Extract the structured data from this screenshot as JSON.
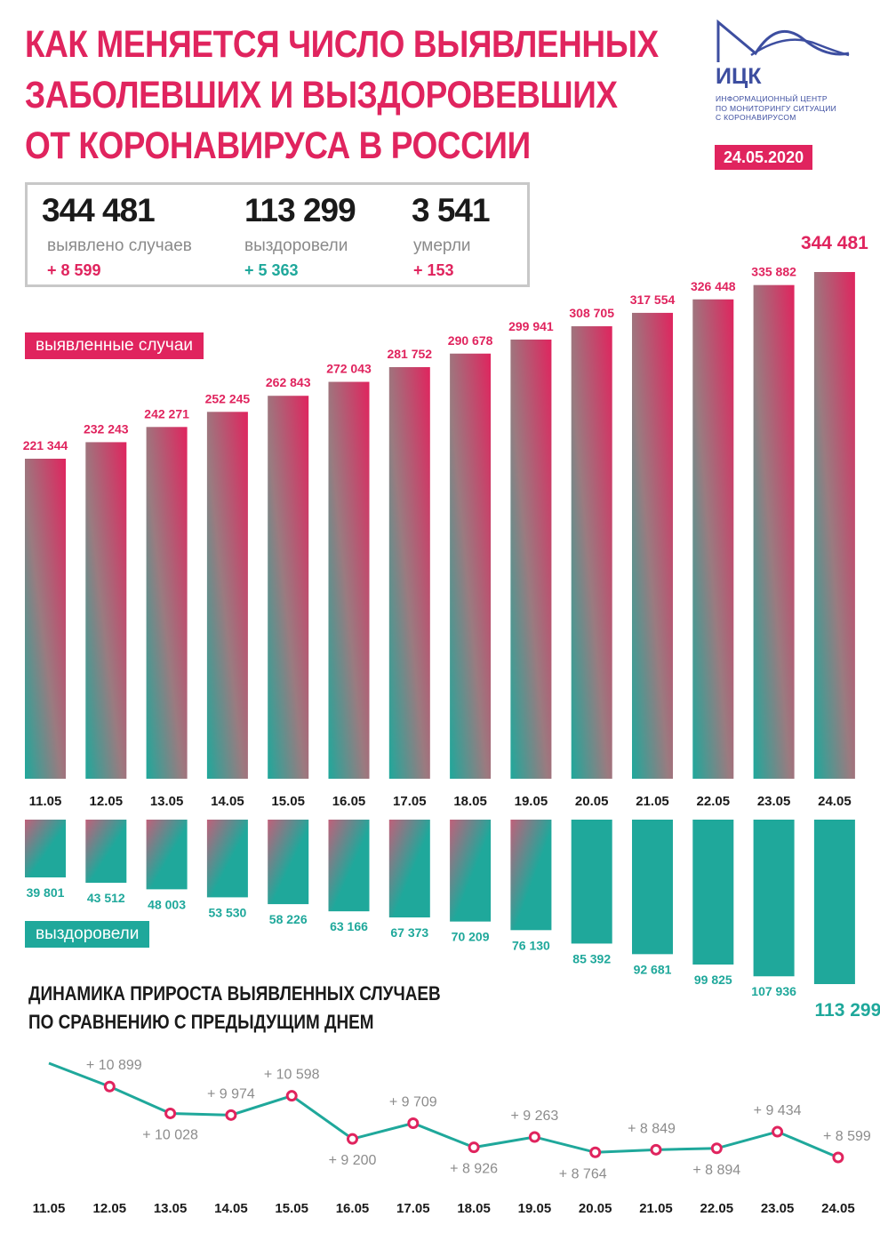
{
  "title": {
    "line1": "КАК МЕНЯЕТСЯ ЧИСЛО ВЫЯВЛЕННЫХ",
    "line2": "ЗАБОЛЕВШИХ И ВЫЗДОРОВЕВШИХ",
    "line3": "ОТ КОРОНАВИРУСА В РОССИИ"
  },
  "logo": {
    "name": "ИЦК",
    "sub1": "ИНФОРМАЦИОННЫЙ ЦЕНТР",
    "sub2": "ПО МОНИТОРИНГУ СИТУАЦИИ",
    "sub3": "С КОРОНАВИРУСОМ",
    "icon": "mountain-wave-logo-icon"
  },
  "date": "24.05.2020",
  "summary": {
    "cases": {
      "value": "344 481",
      "label": "выявлено случаев",
      "delta": "+ 8 599"
    },
    "recovered": {
      "value": "113 299",
      "label": "выздоровели",
      "delta": "+ 5 363"
    },
    "deaths": {
      "value": "3 541",
      "label": "умерли",
      "delta": "+ 153"
    }
  },
  "labels": {
    "cases_tag": "выявленные случаи",
    "recovered_tag": "выздоровели",
    "dynamics_line1": "ДИНАМИКА ПРИРОСТА ВЫЯВЛЕННЫХ СЛУЧАЕВ",
    "dynamics_line2": "ПО СРАВНЕНИЮ С ПРЕДЫДУЩИМ ДНЕМ"
  },
  "colors": {
    "accent": "#e0245e",
    "teal": "#1fa89b",
    "gray": "#8c8c8c",
    "brand": "#3d4ea0"
  },
  "chart_data": [
    {
      "type": "bar",
      "title": "выявленные случаи",
      "categories": [
        "11.05",
        "12.05",
        "13.05",
        "14.05",
        "15.05",
        "16.05",
        "17.05",
        "18.05",
        "19.05",
        "20.05",
        "21.05",
        "22.05",
        "23.05",
        "24.05"
      ],
      "values": [
        221344,
        232243,
        242271,
        252245,
        262843,
        272043,
        281752,
        290678,
        299941,
        308705,
        317554,
        326448,
        335882,
        344481
      ],
      "labels": [
        "221 344",
        "232 243",
        "242 271",
        "252 245",
        "262 843",
        "272 043",
        "281 752",
        "290 678",
        "299 941",
        "308 705",
        "317 554",
        "326 448",
        "335 882",
        "344 481"
      ]
    },
    {
      "type": "bar",
      "title": "выздоровели",
      "categories": [
        "11.05",
        "12.05",
        "13.05",
        "14.05",
        "15.05",
        "16.05",
        "17.05",
        "18.05",
        "19.05",
        "20.05",
        "21.05",
        "22.05",
        "23.05",
        "24.05"
      ],
      "values": [
        39801,
        43512,
        48003,
        53530,
        58226,
        63166,
        67373,
        70209,
        76130,
        85392,
        92681,
        99825,
        107936,
        113299
      ],
      "labels": [
        "39 801",
        "43 512",
        "48 003",
        "53 530",
        "58 226",
        "63 166",
        "67 373",
        "70 209",
        "76 130",
        "85 392",
        "92 681",
        "99 825",
        "107 936",
        "113 299"
      ]
    },
    {
      "type": "line",
      "title": "ДИНАМИКА ПРИРОСТА ВЫЯВЛЕННЫХ СЛУЧАЕВ ПО СРАВНЕНИЮ С ПРЕДЫДУЩИМ ДНЕМ",
      "categories": [
        "11.05",
        "12.05",
        "13.05",
        "14.05",
        "15.05",
        "16.05",
        "17.05",
        "18.05",
        "19.05",
        "20.05",
        "21.05",
        "22.05",
        "23.05",
        "24.05"
      ],
      "values": [
        11656,
        10899,
        10028,
        9974,
        10598,
        9200,
        9709,
        8926,
        9263,
        8764,
        8849,
        8894,
        9434,
        8599
      ],
      "labels": [
        "",
        "+ 10 899",
        "+ 10 028",
        "+ 9 974",
        "+ 10 598",
        "+ 9 200",
        "+ 9 709",
        "+ 8 926",
        "+ 9 263",
        "+ 8 764",
        "+ 8 849",
        "+ 8 894",
        "+ 9 434",
        "+ 8 599"
      ]
    }
  ]
}
